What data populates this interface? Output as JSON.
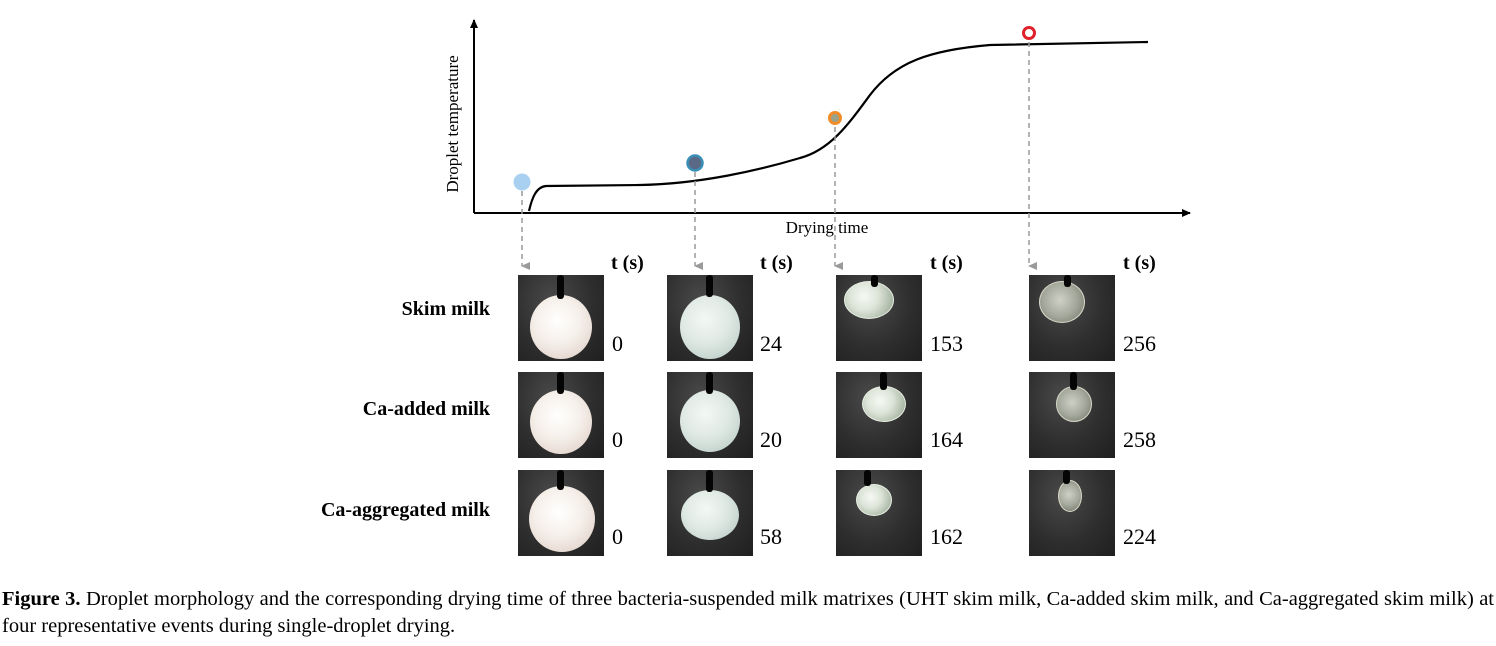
{
  "chart_data": {
    "type": "line",
    "title": "",
    "xlabel": "Drying time",
    "ylabel": "Droplet temperature",
    "grid": false,
    "axis_ticks": false,
    "curve_shape": "sigmoidal: initial rapid rise, plateau, steep rise, high plateau",
    "events": [
      {
        "marker": "filled-circle",
        "color": "#a9d0f0"
      },
      {
        "marker": "filled-circle",
        "color": "#3a8fb7",
        "fill": "#5a6a86"
      },
      {
        "marker": "ring",
        "color": "#f28c28",
        "fill": "#9aa38a"
      },
      {
        "marker": "ring",
        "color": "#e0202a",
        "fill": "#ffffff"
      }
    ]
  },
  "table": {
    "column_header": "t (s)",
    "rows": [
      {
        "label": "Skim milk",
        "times": [
          "0",
          "24",
          "153",
          "256"
        ]
      },
      {
        "label": "Ca-added milk",
        "times": [
          "0",
          "20",
          "164",
          "258"
        ]
      },
      {
        "label": "Ca-aggregated milk",
        "times": [
          "0",
          "58",
          "162",
          "224"
        ]
      }
    ]
  },
  "caption": {
    "label": "Figure 3.",
    "text": "Droplet morphology and the corresponding drying time of three bacteria-suspended milk matrixes (UHT skim milk, Ca-added skim milk, and Ca-aggregated skim milk) at four representative events during single-droplet drying."
  },
  "colors": {
    "axis": "#000000",
    "guide_arrow": "#9a9a9a",
    "photo_background": "#2e2e2e"
  }
}
